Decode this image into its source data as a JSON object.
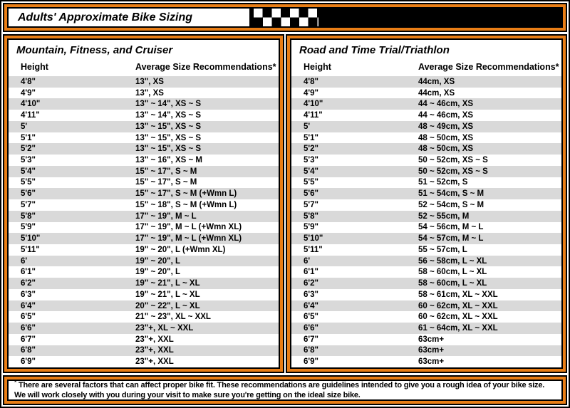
{
  "colors": {
    "accent_orange": "#E97E16",
    "row_stripe_gray": "#D9D9D9",
    "flag_black": "#000000",
    "text_black": "#000000"
  },
  "header": {
    "title": "Adults' Approximate Bike Sizing",
    "flag_icon": "checkered-flag"
  },
  "tables": [
    {
      "title": "Mountain, Fitness, and Cruiser",
      "columns": [
        "Height",
        "Average Size Recommendations*"
      ],
      "rows": [
        [
          "4'8\"",
          "13\", XS"
        ],
        [
          "4'9\"",
          "13\", XS"
        ],
        [
          "4'10\"",
          "13\" ~ 14\", XS ~ S"
        ],
        [
          "4'11\"",
          "13\" ~ 14\", XS ~ S"
        ],
        [
          "5'",
          "13\" ~ 15\", XS ~ S"
        ],
        [
          "5'1\"",
          "13\" ~ 15\", XS ~ S"
        ],
        [
          "5'2\"",
          "13\" ~ 15\", XS ~ S"
        ],
        [
          "5'3\"",
          "13\" ~ 16\", XS ~ M"
        ],
        [
          "5'4\"",
          "15\" ~ 17\", S ~ M"
        ],
        [
          "5'5\"",
          "15\" ~ 17\", S ~ M"
        ],
        [
          "5'6\"",
          "15\" ~ 17\", S ~ M (+Wmn L)"
        ],
        [
          "5'7\"",
          "15\" ~ 18\", S ~ M (+Wmn L)"
        ],
        [
          "5'8\"",
          "17\" ~ 19\", M ~ L"
        ],
        [
          "5'9\"",
          "17\" ~ 19\", M ~ L (+Wmn XL)"
        ],
        [
          "5'10\"",
          "17\" ~ 19\", M ~ L (+Wmn XL)"
        ],
        [
          "5'11\"",
          "19\" ~ 20\", L (+Wmn XL)"
        ],
        [
          "6'",
          "19\" ~ 20\", L"
        ],
        [
          "6'1\"",
          "19\" ~ 20\", L"
        ],
        [
          "6'2\"",
          "19\" ~ 21\", L ~ XL"
        ],
        [
          "6'3\"",
          "19\" ~ 21\", L ~ XL"
        ],
        [
          "6'4\"",
          "20\" ~ 22\", L ~ XL"
        ],
        [
          "6'5\"",
          "21\" ~ 23\", XL ~ XXL"
        ],
        [
          "6'6\"",
          "23\"+, XL ~ XXL"
        ],
        [
          "6'7\"",
          "23\"+, XXL"
        ],
        [
          "6'8\"",
          "23\"+, XXL"
        ],
        [
          "6'9\"",
          "23\"+, XXL"
        ]
      ]
    },
    {
      "title": "Road and Time Trial/Triathlon",
      "columns": [
        "Height",
        "Average Size Recommendations*"
      ],
      "rows": [
        [
          "4'8\"",
          "44cm, XS"
        ],
        [
          "4'9\"",
          "44cm, XS"
        ],
        [
          "4'10\"",
          "44 ~ 46cm, XS"
        ],
        [
          "4'11\"",
          "44 ~ 46cm, XS"
        ],
        [
          "5'",
          "48 ~ 49cm, XS"
        ],
        [
          "5'1\"",
          "48 ~ 50cm, XS"
        ],
        [
          "5'2\"",
          "48 ~ 50cm, XS"
        ],
        [
          "5'3\"",
          "50 ~ 52cm, XS ~ S"
        ],
        [
          "5'4\"",
          "50 ~ 52cm, XS ~ S"
        ],
        [
          "5'5\"",
          "51 ~ 52cm, S"
        ],
        [
          "5'6\"",
          "51 ~ 54cm, S ~ M"
        ],
        [
          "5'7\"",
          "52 ~ 54cm, S ~ M"
        ],
        [
          "5'8\"",
          "52 ~ 55cm, M"
        ],
        [
          "5'9\"",
          "54 ~ 56cm, M ~ L"
        ],
        [
          "5'10\"",
          "54 ~ 57cm, M ~ L"
        ],
        [
          "5'11\"",
          "55  ~ 57cm, L"
        ],
        [
          "6'",
          "56 ~ 58cm, L ~ XL"
        ],
        [
          "6'1\"",
          "58 ~ 60cm, L ~ XL"
        ],
        [
          "6'2\"",
          "58 ~ 60cm, L ~ XL"
        ],
        [
          "6'3\"",
          "58 ~ 61cm, XL ~ XXL"
        ],
        [
          "6'4\"",
          "60 ~ 62cm, XL ~ XXL"
        ],
        [
          "6'5\"",
          "60 ~ 62cm, XL ~ XXL"
        ],
        [
          "6'6\"",
          "61 ~ 64cm, XL ~ XXL"
        ],
        [
          "6'7\"",
          "63cm+"
        ],
        [
          "6'8\"",
          "63cm+"
        ],
        [
          "6'9\"",
          "63cm+"
        ]
      ]
    }
  ],
  "footnote": {
    "star": "*",
    "text": "There are several factors that can affect proper bike fit. These recommendations are guidelines intended to give you a rough idea of your bike size. We will work closely with you during your visit to make sure you're getting on the ideal size bike."
  }
}
